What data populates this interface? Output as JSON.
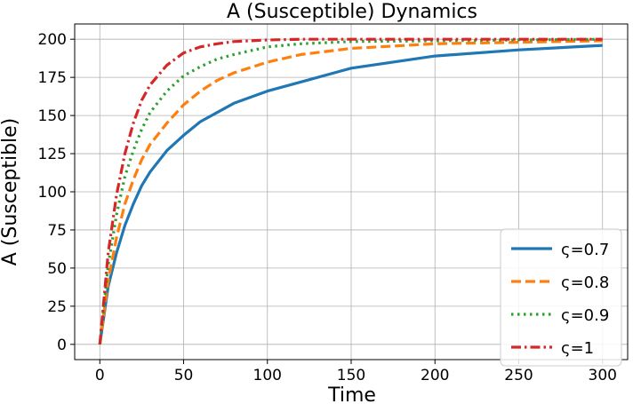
{
  "chart_data": {
    "type": "line",
    "title": "A (Susceptible) Dynamics",
    "xlabel": "Time",
    "ylabel": "A (Susceptible)",
    "xlim": [
      -15,
      315
    ],
    "ylim": [
      -10,
      210
    ],
    "xticks": [
      0,
      50,
      100,
      150,
      200,
      250,
      300
    ],
    "yticks": [
      0,
      25,
      50,
      75,
      100,
      125,
      150,
      175,
      200
    ],
    "grid": true,
    "legend_position": "bottom-right",
    "x": [
      0,
      5,
      10,
      15,
      20,
      25,
      30,
      40,
      50,
      60,
      70,
      80,
      100,
      120,
      150,
      200,
      250,
      300
    ],
    "series": [
      {
        "name": "ς=0.7",
        "color": "#1f77b4",
        "style": "solid",
        "values": [
          0,
          38,
          60,
          78,
          92,
          104,
          113,
          127,
          137,
          146,
          152,
          158,
          166,
          172,
          181,
          189,
          193,
          196
        ]
      },
      {
        "name": "ς=0.8",
        "color": "#ff7f0e",
        "style": "dashed",
        "values": [
          0,
          42,
          70,
          92,
          108,
          121,
          131,
          145,
          157,
          166,
          173,
          178,
          185,
          190,
          194,
          197,
          198,
          199
        ]
      },
      {
        "name": "ς=0.9",
        "color": "#2ca02c",
        "style": "dotted",
        "values": [
          0,
          52,
          85,
          110,
          127,
          141,
          152,
          166,
          176,
          182,
          187,
          190,
          195,
          197,
          198.5,
          199,
          199.5,
          200
        ]
      },
      {
        "name": "ς=1",
        "color": "#d62728",
        "style": "dashdot",
        "values": [
          0,
          60,
          98,
          125,
          145,
          160,
          170,
          183,
          191,
          195,
          197,
          198.5,
          199.5,
          200,
          200,
          200,
          200,
          200
        ]
      }
    ]
  }
}
